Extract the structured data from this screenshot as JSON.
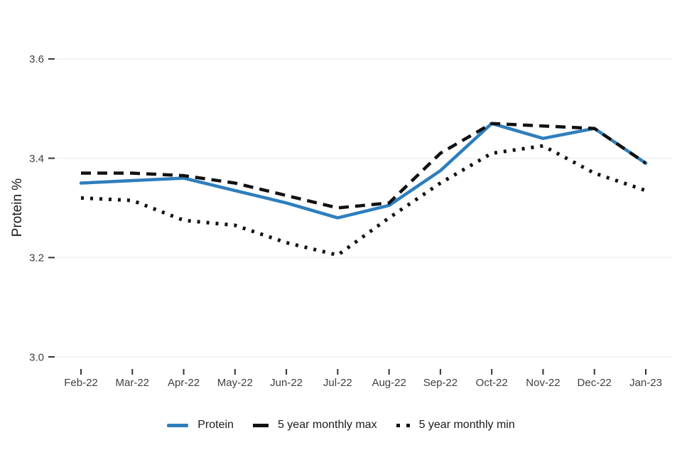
{
  "chart_data": {
    "type": "line",
    "title": "",
    "xlabel": "",
    "ylabel": "Protein %",
    "grid": true,
    "legend_position": "bottom",
    "categories": [
      "Feb-22",
      "Mar-22",
      "Apr-22",
      "May-22",
      "Jun-22",
      "Jul-22",
      "Aug-22",
      "Sep-22",
      "Oct-22",
      "Nov-22",
      "Dec-22",
      "Jan-23"
    ],
    "yticks": [
      3.0,
      3.2,
      3.4,
      3.6
    ],
    "ytick_labels": [
      "3.0",
      "3.2",
      "3.4",
      "3.6"
    ],
    "ylim": [
      2.96,
      3.63
    ],
    "series": [
      {
        "name": "Protein",
        "style": "solid",
        "color": "#2e7ebd",
        "values": [
          3.35,
          3.355,
          3.36,
          3.335,
          3.31,
          3.28,
          3.305,
          3.375,
          3.47,
          3.44,
          3.46,
          3.39
        ]
      },
      {
        "name": "5 year monthly max",
        "style": "dashed",
        "color": "#111111",
        "values": [
          3.37,
          3.37,
          3.365,
          3.35,
          3.325,
          3.3,
          3.31,
          3.41,
          3.47,
          3.465,
          3.46,
          3.39
        ]
      },
      {
        "name": "5 year monthly min",
        "style": "dotted",
        "color": "#111111",
        "values": [
          3.32,
          3.315,
          3.275,
          3.265,
          3.23,
          3.205,
          3.28,
          3.35,
          3.41,
          3.425,
          3.37,
          3.335
        ]
      }
    ]
  }
}
